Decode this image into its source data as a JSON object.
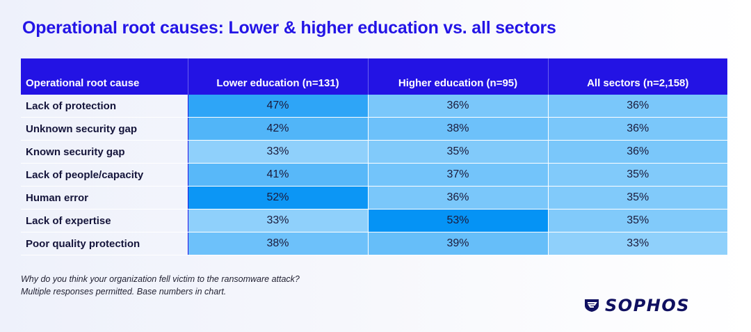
{
  "title": "Operational root causes: Lower & higher education vs. all sectors",
  "chart_data": {
    "type": "table",
    "title": "Operational root causes: Lower & higher education vs. all sectors",
    "columns": [
      "Operational root cause",
      "Lower education (n=131)",
      "Higher education (n=95)",
      "All sectors (n=2,158)"
    ],
    "rows": [
      {
        "label": "Lack of protection",
        "values": [
          47,
          36,
          36
        ]
      },
      {
        "label": "Unknown security gap",
        "values": [
          42,
          38,
          36
        ]
      },
      {
        "label": "Known security gap",
        "values": [
          33,
          35,
          36
        ]
      },
      {
        "label": "Lack of people/capacity",
        "values": [
          41,
          37,
          35
        ]
      },
      {
        "label": "Human error",
        "values": [
          52,
          36,
          35
        ]
      },
      {
        "label": "Lack of expertise",
        "values": [
          33,
          53,
          35
        ]
      },
      {
        "label": "Poor quality protection",
        "values": [
          38,
          39,
          33
        ]
      }
    ],
    "unit": "%",
    "heat_colors": {
      "low": "#8fd0fb",
      "high": "#0593f5"
    },
    "header_color": "#2313e4"
  },
  "footnote": {
    "line1": "Why do you think your organization fell victim to the ransomware attack?",
    "line2": "Multiple responses permitted. Base numbers in chart."
  },
  "logo": {
    "text": "SOPHOS",
    "icon": "sophos-shield-icon"
  }
}
